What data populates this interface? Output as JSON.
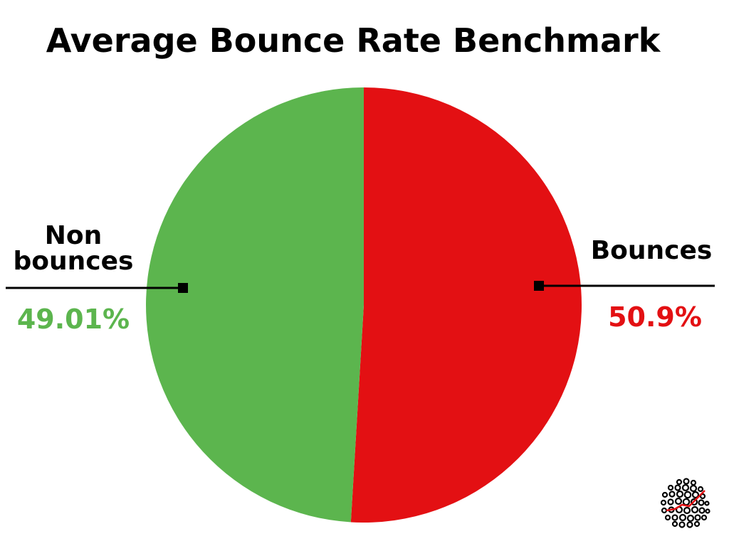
{
  "chart_data": {
    "type": "pie",
    "title": "Average Bounce Rate Benchmark",
    "slices": [
      {
        "label": "Bounces",
        "value": 50.9,
        "display": "50.9%",
        "color": "#E31013"
      },
      {
        "label": "Non bounces",
        "value": 49.01,
        "display": "49.01%",
        "color": "#5CB54E"
      }
    ],
    "legend": "none",
    "start_angle_deg": 0,
    "direction": "clockwise"
  },
  "labels": {
    "non_bounces_line1": "Non",
    "non_bounces_line2": "bounces",
    "non_bounces_value": "49.01%",
    "bounces": "Bounces",
    "bounces_value": "50.9%"
  },
  "colors": {
    "bounces": "#E31013",
    "non_bounces": "#5CB54E",
    "leader_line": "#000000",
    "logo_accent": "#E31013"
  },
  "logo": {
    "icon": "dotted-sphere-logo-icon"
  }
}
